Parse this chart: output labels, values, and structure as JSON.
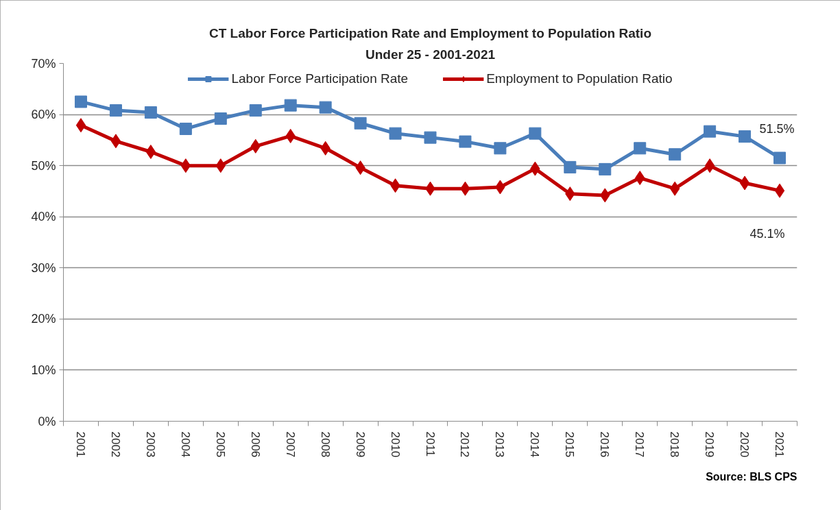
{
  "chart_data": {
    "type": "line",
    "title": "CT Labor Force Participation Rate and Employment to Population Ratio",
    "subtitle": "Under 25 - 2001-2021",
    "categories": [
      "2001",
      "2002",
      "2003",
      "2004",
      "2005",
      "2006",
      "2007",
      "2008",
      "2009",
      "2010",
      "2011",
      "2012",
      "2013",
      "2014",
      "2015",
      "2016",
      "2017",
      "2018",
      "2019",
      "2020",
      "2021"
    ],
    "series": [
      {
        "name": "Labor Force Participation Rate",
        "color": "#4a7ebb",
        "marker": "square",
        "values": [
          62.5,
          60.8,
          60.4,
          57.2,
          59.2,
          60.8,
          61.8,
          61.4,
          58.3,
          56.3,
          55.5,
          54.7,
          53.4,
          56.3,
          49.7,
          49.3,
          53.4,
          52.2,
          56.7,
          55.7,
          51.5
        ],
        "value_labels": [
          null,
          null,
          null,
          null,
          null,
          null,
          null,
          null,
          null,
          null,
          null,
          null,
          null,
          null,
          null,
          null,
          null,
          null,
          null,
          null,
          "51.5%"
        ]
      },
      {
        "name": "Employment to Population Ratio",
        "color": "#c00000",
        "marker": "diamond",
        "values": [
          57.9,
          54.8,
          52.7,
          50.0,
          50.0,
          53.8,
          55.8,
          53.4,
          49.6,
          46.1,
          45.5,
          45.5,
          45.8,
          49.4,
          44.5,
          44.2,
          47.6,
          45.5,
          50.0,
          46.6,
          45.1
        ],
        "value_labels": [
          null,
          null,
          null,
          null,
          null,
          null,
          null,
          null,
          null,
          null,
          null,
          null,
          null,
          null,
          null,
          null,
          null,
          null,
          null,
          null,
          "45.1%"
        ]
      }
    ],
    "ylim": [
      0,
      70
    ],
    "yticks": [
      {
        "value": 0,
        "label": "0%"
      },
      {
        "value": 10,
        "label": "10%"
      },
      {
        "value": 20,
        "label": "20%"
      },
      {
        "value": 30,
        "label": "30%"
      },
      {
        "value": 40,
        "label": "40%"
      },
      {
        "value": 50,
        "label": "50%"
      },
      {
        "value": 60,
        "label": "60%"
      },
      {
        "value": 70,
        "label": "70%"
      }
    ],
    "grid": "y",
    "legend": "top",
    "line_style": "solid",
    "annotations": [
      "Source: BLS CPS"
    ]
  }
}
